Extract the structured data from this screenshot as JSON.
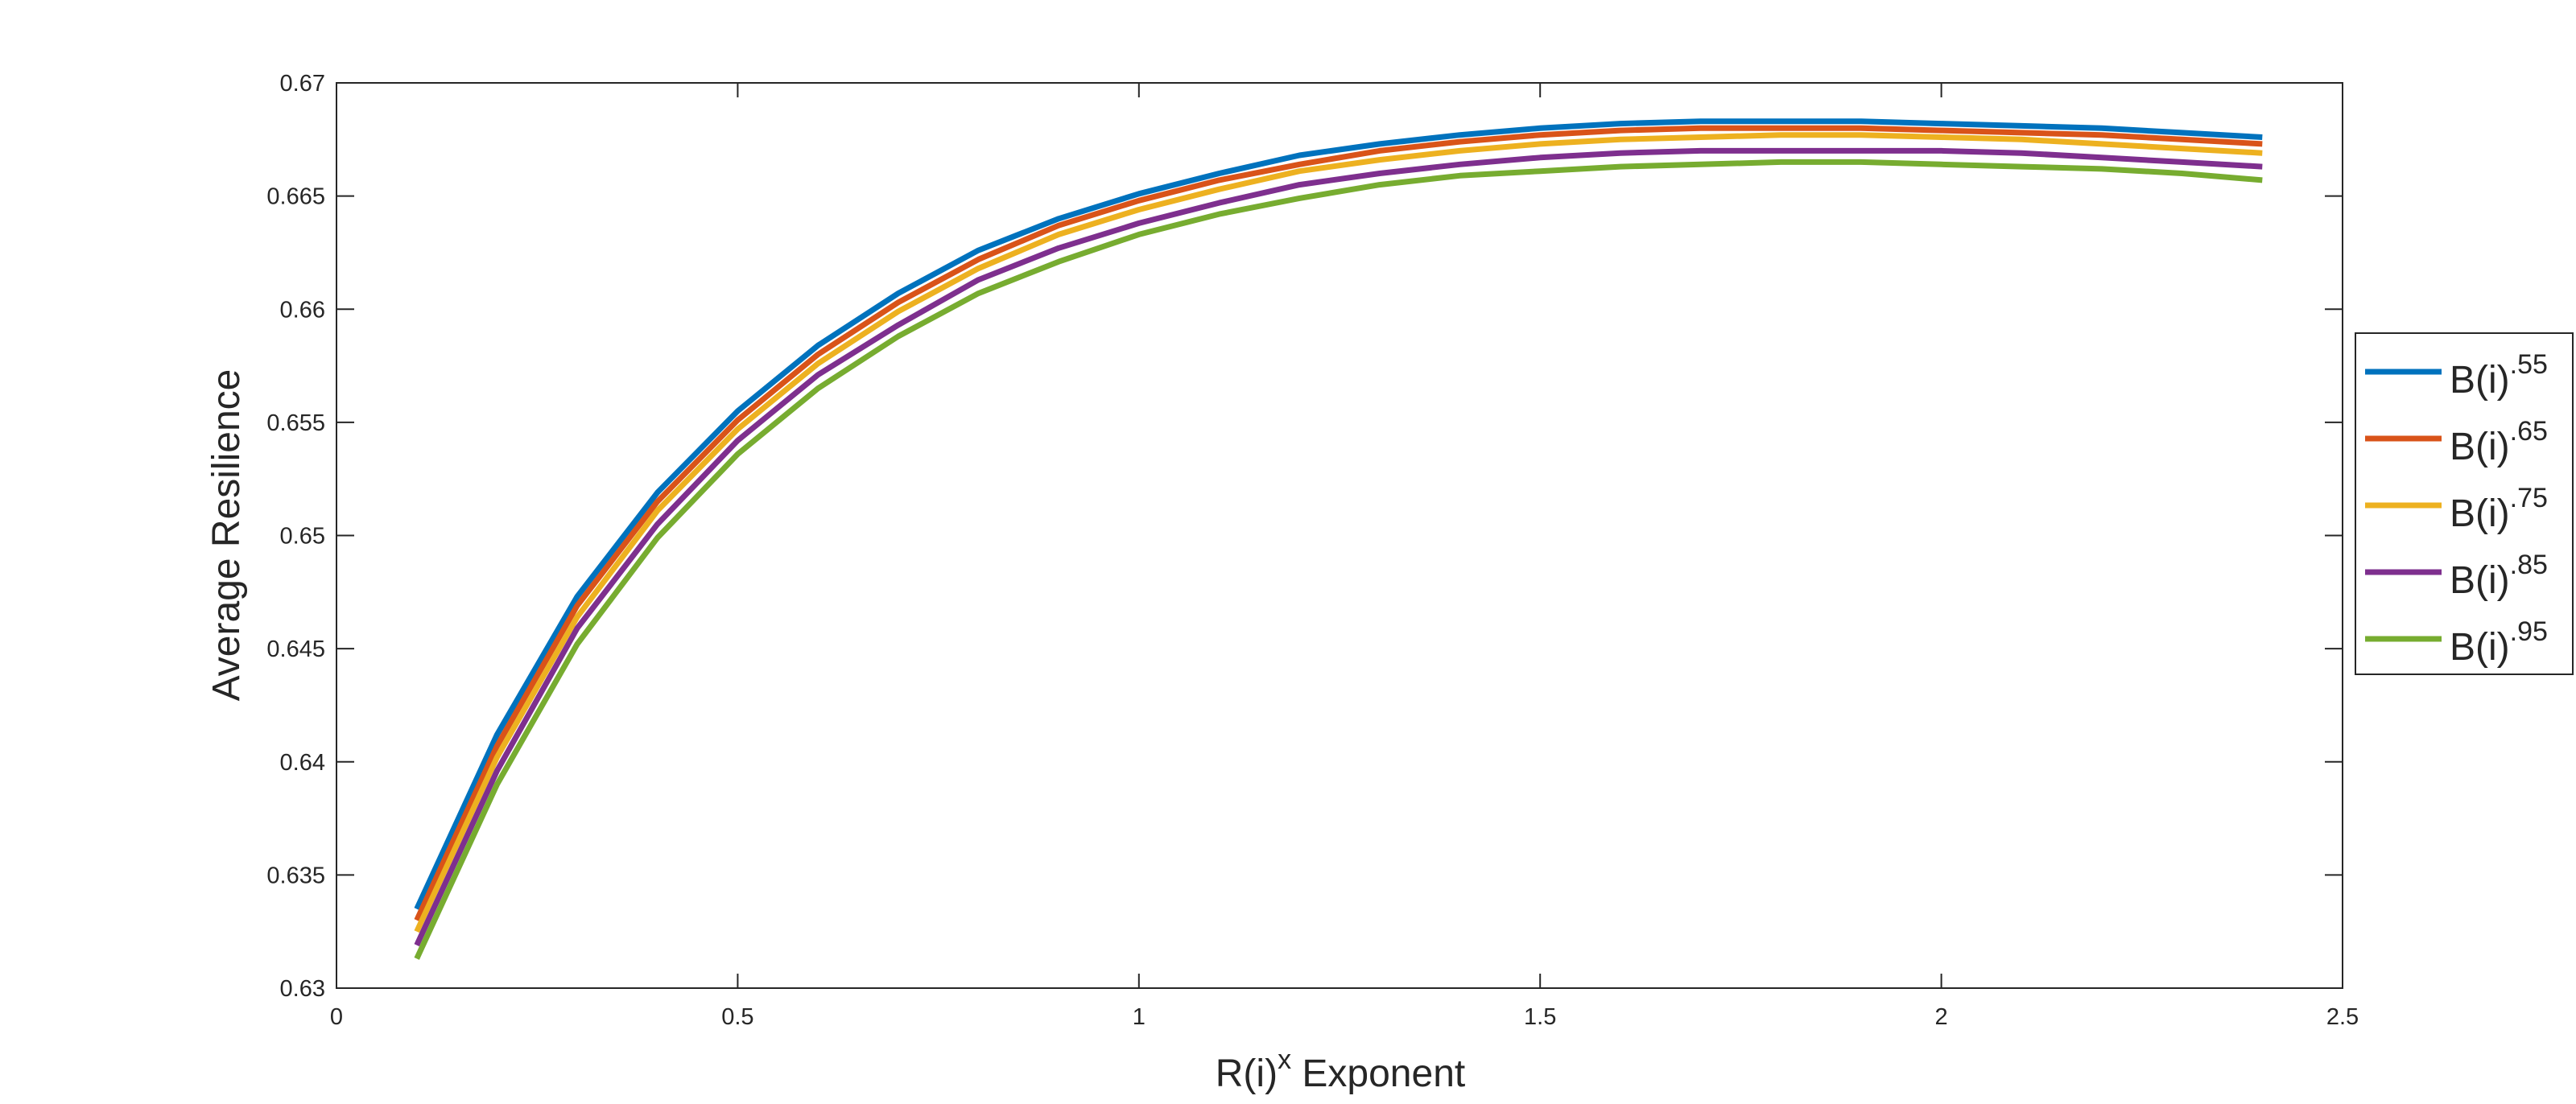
{
  "chart_data": {
    "type": "line",
    "title": "",
    "xlabel": {
      "base": "R(i)",
      "sup": "x",
      "rest": " Exponent"
    },
    "ylabel": "Average Resilience",
    "xlim": [
      0,
      2.5
    ],
    "ylim": [
      0.63,
      0.67
    ],
    "xticks": [
      0,
      0.5,
      1,
      1.5,
      2,
      2.5
    ],
    "xtick_labels": [
      "0",
      "0.5",
      "1",
      "1.5",
      "2",
      "2.5"
    ],
    "yticks": [
      0.63,
      0.635,
      0.64,
      0.645,
      0.65,
      0.655,
      0.66,
      0.665,
      0.67
    ],
    "ytick_labels": [
      "0.63",
      "0.635",
      "0.64",
      "0.645",
      "0.65",
      "0.655",
      "0.66",
      "0.665",
      "0.67"
    ],
    "grid": false,
    "legend_position": "outside-right",
    "x": [
      0.1,
      0.2,
      0.3,
      0.4,
      0.5,
      0.6,
      0.7,
      0.8,
      0.9,
      1.0,
      1.1,
      1.2,
      1.3,
      1.4,
      1.5,
      1.6,
      1.7,
      1.8,
      1.9,
      2.0,
      2.1,
      2.2,
      2.3,
      2.4
    ],
    "series": [
      {
        "name": "B(i).55",
        "label_base": "B(i)",
        "label_sup": ".55",
        "color": "#0072BD",
        "values": [
          0.6335,
          0.6412,
          0.6473,
          0.6519,
          0.6555,
          0.6584,
          0.6607,
          0.6626,
          0.664,
          0.6651,
          0.666,
          0.6668,
          0.6673,
          0.6677,
          0.668,
          0.6682,
          0.6683,
          0.6683,
          0.6683,
          0.6682,
          0.6681,
          0.668,
          0.6678,
          0.6676
        ]
      },
      {
        "name": "B(i).65",
        "label_base": "B(i)",
        "label_sup": ".65",
        "color": "#D95319",
        "values": [
          0.633,
          0.6407,
          0.6469,
          0.6515,
          0.6551,
          0.658,
          0.6603,
          0.6622,
          0.6637,
          0.6648,
          0.6657,
          0.6664,
          0.667,
          0.6674,
          0.6677,
          0.6679,
          0.668,
          0.668,
          0.668,
          0.6679,
          0.6678,
          0.6677,
          0.6675,
          0.6673
        ]
      },
      {
        "name": "B(i).75",
        "label_base": "B(i)",
        "label_sup": ".75",
        "color": "#EDB120",
        "values": [
          0.6325,
          0.6402,
          0.6464,
          0.6511,
          0.6547,
          0.6576,
          0.6599,
          0.6618,
          0.6633,
          0.6644,
          0.6653,
          0.6661,
          0.6666,
          0.667,
          0.6673,
          0.6675,
          0.6676,
          0.6677,
          0.6677,
          0.6676,
          0.6675,
          0.6673,
          0.6671,
          0.6669
        ]
      },
      {
        "name": "B(i).85",
        "label_base": "B(i)",
        "label_sup": ".85",
        "color": "#7E2F8E",
        "values": [
          0.6319,
          0.6396,
          0.6459,
          0.6505,
          0.6542,
          0.6571,
          0.6593,
          0.6613,
          0.6627,
          0.6638,
          0.6647,
          0.6655,
          0.666,
          0.6664,
          0.6667,
          0.6669,
          0.667,
          0.667,
          0.667,
          0.667,
          0.6669,
          0.6667,
          0.6665,
          0.6663
        ]
      },
      {
        "name": "B(i).95",
        "label_base": "B(i)",
        "label_sup": ".95",
        "color": "#77AC30",
        "values": [
          0.6313,
          0.639,
          0.6452,
          0.6499,
          0.6536,
          0.6565,
          0.6588,
          0.6607,
          0.6621,
          0.6633,
          0.6642,
          0.6649,
          0.6655,
          0.6659,
          0.6661,
          0.6663,
          0.6664,
          0.6665,
          0.6665,
          0.6664,
          0.6663,
          0.6662,
          0.666,
          0.6657
        ]
      }
    ]
  }
}
